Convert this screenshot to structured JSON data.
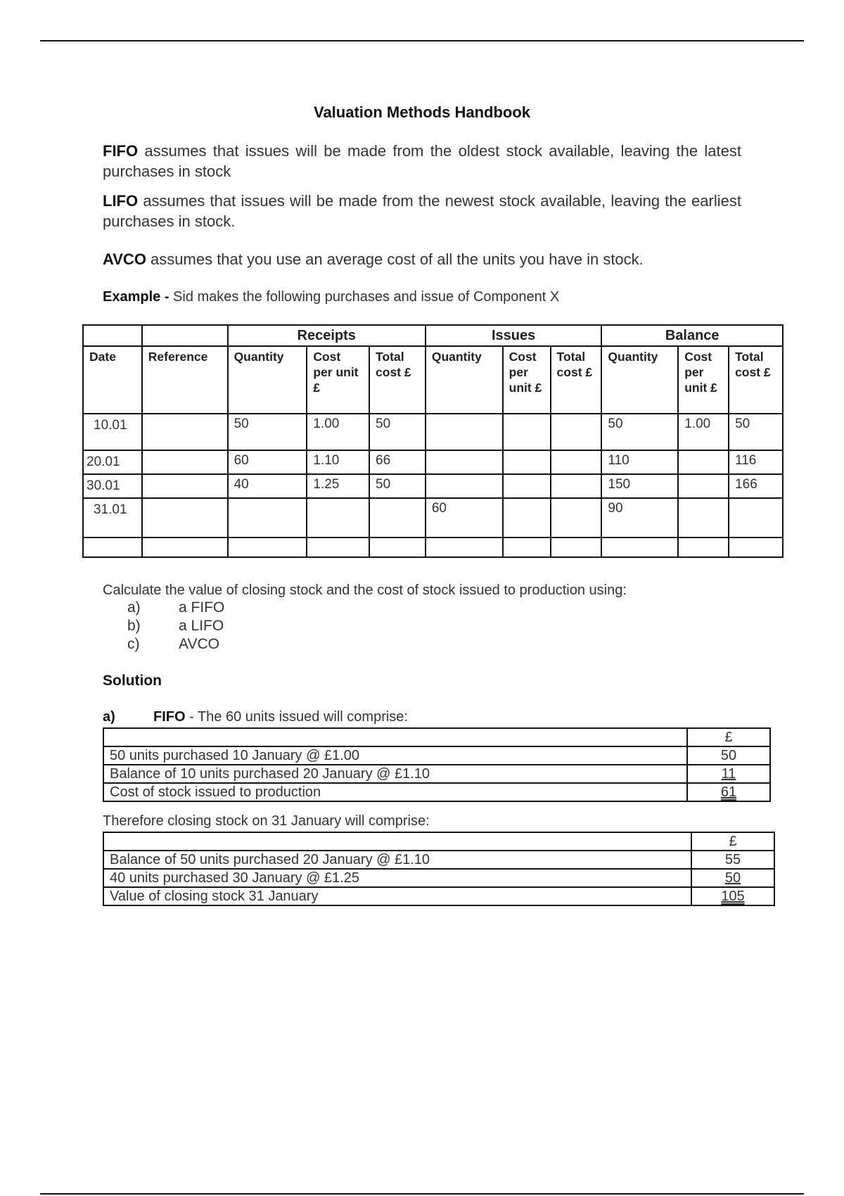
{
  "title": "Valuation Methods Handbook",
  "definitions": [
    {
      "term": "FIFO",
      "text": " assumes that issues will be made from the oldest stock available, leaving the latest purchases in stock"
    },
    {
      "term": "LIFO",
      "text": " assumes that issues will be made from the newest stock available, leaving the earliest purchases in stock."
    },
    {
      "term": "AVCO",
      "text": " assumes that you use an average cost of all the units you have in stock."
    }
  ],
  "example": {
    "label": "Example -",
    "text": " Sid makes the following purchases and issue of Component X"
  },
  "stock_table": {
    "groups": [
      "Receipts",
      "Issues",
      "Balance"
    ],
    "headers": [
      "Date",
      "Reference",
      "Quantity",
      "Cost per unit £",
      "Total cost £",
      "Quantity",
      "Cost per unit £",
      "Total cost £",
      "Quantity",
      "Cost per unit £",
      "Total cost £"
    ],
    "rows": [
      [
        "10.01",
        "",
        "50",
        "1.00",
        "50",
        "",
        "",
        "",
        "50",
        "1.00",
        "50"
      ],
      [
        "20.01",
        "",
        "60",
        "1.10",
        "66",
        "",
        "",
        "",
        "110",
        "",
        "116"
      ],
      [
        "30.01",
        "",
        "40",
        "1.25",
        "50",
        "",
        "",
        "",
        "150",
        "",
        "166"
      ],
      [
        "31.01",
        "",
        "",
        "",
        "",
        "60",
        "",
        "",
        "90",
        "",
        ""
      ],
      [
        "",
        "",
        "",
        "",
        "",
        "",
        "",
        "",
        "",
        "",
        ""
      ]
    ]
  },
  "question": "Calculate the value of closing stock and the cost of stock issued to production using:",
  "options": [
    {
      "label": "a)",
      "text": "a FIFO"
    },
    {
      "label": "b)",
      "text": "a LIFO"
    },
    {
      "label": "c)",
      "text": "AVCO"
    }
  ],
  "solution_heading": "Solution",
  "fifo": {
    "label": "a)",
    "term": "FIFO",
    "text": " - The 60 units issued will comprise:"
  },
  "issue_table": {
    "currency": "£",
    "rows": [
      {
        "desc": "50 units purchased 10 January @ £1.00",
        "amount": "50"
      },
      {
        "desc": "Balance of 10 units purchased 20 January @ £1.10",
        "amount": "11"
      },
      {
        "desc": "Cost of stock issued to production",
        "amount": "61"
      }
    ]
  },
  "closing_intro": "Therefore closing stock on 31 January will comprise:",
  "closing_table": {
    "currency": "£",
    "rows": [
      {
        "desc": "Balance of 50 units purchased 20 January @ £1.10",
        "amount": "55"
      },
      {
        "desc": "40 units purchased 30 January @ £1.25",
        "amount": "50"
      },
      {
        "desc": "Value of closing stock 31 January",
        "amount": "105"
      }
    ]
  }
}
